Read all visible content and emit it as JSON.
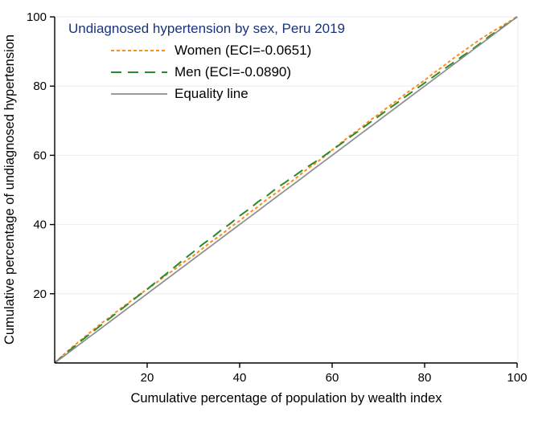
{
  "figure": {
    "background": "#ffffff"
  },
  "chart_data": {
    "type": "line",
    "title": "Undiagnosed hypertension by sex, Peru 2019",
    "title_color": "#1a337a",
    "xlabel": "Cumulative percentage of population by wealth index",
    "ylabel": "Cumulative percentage of undiagnosed hypertension",
    "xlim": [
      0,
      100
    ],
    "ylim": [
      0,
      100
    ],
    "xticks": [
      20,
      40,
      60,
      80,
      100
    ],
    "yticks": [
      20,
      40,
      60,
      80,
      100
    ],
    "grid": "horizontal",
    "grid_color": "#e4eef0",
    "axis_color": "#000000",
    "legend_position": "top-left-inside",
    "x": [
      0,
      2,
      4,
      6,
      8,
      10,
      12,
      14,
      16,
      18,
      20,
      22,
      24,
      26,
      28,
      30,
      32,
      34,
      36,
      38,
      40,
      42,
      44,
      46,
      48,
      50,
      52,
      54,
      56,
      58,
      60,
      62,
      64,
      66,
      68,
      70,
      72,
      74,
      76,
      78,
      80,
      82,
      84,
      86,
      88,
      90,
      92,
      94,
      96,
      98,
      100
    ],
    "series": [
      {
        "name": "women",
        "label": "Women (ECI=-0.0651)",
        "eci": -0.0651,
        "color": "#ff8d1a",
        "dash": "4 3",
        "width": 2,
        "values": [
          0,
          2.5,
          4.8,
          7.0,
          9.2,
          11.4,
          13.3,
          15.5,
          17.4,
          19.5,
          21.3,
          23.2,
          25.3,
          27.1,
          29.2,
          31.0,
          33.1,
          35.2,
          37.0,
          39.2,
          41.1,
          43.3,
          45.2,
          47.4,
          49.2,
          51.3,
          53.2,
          55.4,
          57.3,
          59.3,
          61.5,
          63.7,
          65.8,
          67.7,
          69.9,
          71.8,
          73.9,
          75.8,
          77.9,
          79.8,
          81.7,
          83.8,
          85.7,
          87.8,
          89.7,
          91.6,
          93.5,
          95.2,
          96.8,
          98.4,
          100
        ]
      },
      {
        "name": "men",
        "label": "Men (ECI=-0.0890)",
        "eci": -0.089,
        "color": "#2b8a2b",
        "dash": "13 8",
        "width": 2,
        "values": [
          0,
          2.3,
          4.5,
          6.7,
          8.8,
          10.9,
          13.0,
          15.1,
          17.2,
          19.3,
          21.3,
          23.5,
          25.6,
          27.8,
          30.0,
          32.1,
          34.3,
          36.2,
          38.4,
          40.3,
          42.5,
          44.4,
          46.6,
          48.4,
          50.5,
          52.3,
          54.2,
          56.1,
          57.8,
          59.6,
          61.5,
          63.4,
          65.4,
          67.3,
          69.3,
          71.2,
          73.2,
          75.1,
          77.1,
          79.0,
          80.9,
          82.8,
          84.7,
          86.6,
          88.5,
          90.3,
          92.3,
          94.4,
          96.2,
          98.1,
          100
        ]
      },
      {
        "name": "equality",
        "label": "Equality line",
        "color": "#8c8c8c",
        "dash": "",
        "width": 1.7,
        "values": [
          0,
          2,
          4,
          6,
          8,
          10,
          12,
          14,
          16,
          18,
          20,
          22,
          24,
          26,
          28,
          30,
          32,
          34,
          36,
          38,
          40,
          42,
          44,
          46,
          48,
          50,
          52,
          54,
          56,
          58,
          60,
          62,
          64,
          66,
          68,
          70,
          72,
          74,
          76,
          78,
          80,
          82,
          84,
          86,
          88,
          90,
          92,
          94,
          96,
          98,
          100
        ]
      }
    ]
  }
}
